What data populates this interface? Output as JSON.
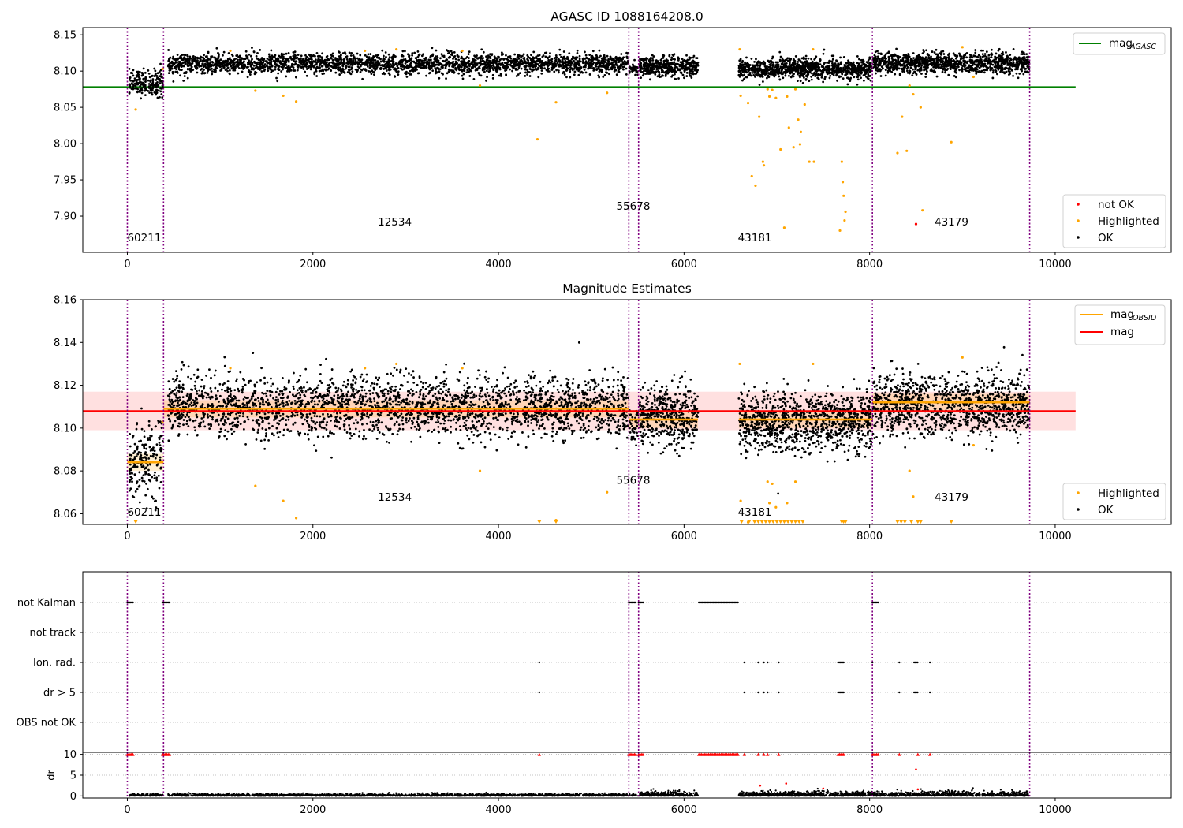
{
  "figure": {
    "title_top": "AGASC ID 1088164208.0",
    "title_mid": "Magnitude Estimates"
  },
  "colors": {
    "ok": "#000000",
    "highlighted": "#ffa500",
    "not_ok": "#ff0000",
    "mag_agasc": "#008000",
    "mag_obsid": "#ffa500",
    "mag": "#ff0000",
    "vline": "#800080",
    "grid": "#b0b0b0"
  },
  "chart_data": [
    {
      "type": "scatter",
      "title": "AGASC ID 1088164208.0",
      "xlim": [
        -480,
        11250
      ],
      "ylim": [
        7.85,
        8.16
      ],
      "xticks": [
        0,
        2000,
        4000,
        6000,
        8000,
        10000
      ],
      "yticks": [
        7.9,
        7.95,
        8.0,
        8.05,
        8.1,
        8.15
      ],
      "ytick_labels": [
        "7.90",
        "7.95",
        "8.00",
        "8.05",
        "8.10",
        "8.15"
      ],
      "hlines": [
        {
          "name": "mag_AGASC",
          "y": 8.078,
          "x": [
            -480,
            10220
          ]
        }
      ],
      "obsid_boundaries": [
        0,
        390,
        5405,
        5510,
        8030,
        9725
      ],
      "obsid_labels": [
        {
          "text": "60211",
          "x": 0,
          "y": 7.865
        },
        {
          "text": "12534",
          "x": 2700,
          "y": 7.887
        },
        {
          "text": "55678",
          "x": 5270,
          "y": 7.909
        },
        {
          "text": "43181",
          "x": 6580,
          "y": 7.865
        },
        {
          "text": "43179",
          "x": 8700,
          "y": 7.887
        }
      ],
      "series": [
        {
          "name": "not OK",
          "points": [
            [
              8500,
              7.889
            ]
          ]
        },
        {
          "name": "Highlighted",
          "points": [
            [
              90,
              8.047
            ],
            [
              380,
              8.103
            ],
            [
              1380,
              8.073
            ],
            [
              1680,
              8.066
            ],
            [
              1820,
              8.058
            ],
            [
              4420,
              8.006
            ],
            [
              4620,
              8.057
            ],
            [
              5170,
              8.07
            ],
            [
              6610,
              8.066
            ],
            [
              6690,
              8.056
            ],
            [
              6730,
              7.955
            ],
            [
              6770,
              7.942
            ],
            [
              6810,
              8.037
            ],
            [
              6850,
              7.975
            ],
            [
              6860,
              7.97
            ],
            [
              6900,
              8.075
            ],
            [
              6920,
              8.065
            ],
            [
              6950,
              8.074
            ],
            [
              6990,
              8.063
            ],
            [
              7040,
              7.992
            ],
            [
              7080,
              7.884
            ],
            [
              7110,
              8.065
            ],
            [
              7130,
              8.022
            ],
            [
              7180,
              7.995
            ],
            [
              7200,
              8.075
            ],
            [
              7230,
              8.033
            ],
            [
              7250,
              7.999
            ],
            [
              7260,
              8.016
            ],
            [
              7300,
              8.054
            ],
            [
              7350,
              7.975
            ],
            [
              7400,
              7.975
            ],
            [
              7680,
              7.88
            ],
            [
              7700,
              7.975
            ],
            [
              7710,
              7.947
            ],
            [
              7720,
              7.928
            ],
            [
              7730,
              7.894
            ],
            [
              7740,
              7.906
            ],
            [
              8300,
              7.987
            ],
            [
              8350,
              8.037
            ],
            [
              8400,
              7.99
            ],
            [
              8430,
              8.08
            ],
            [
              8470,
              8.068
            ],
            [
              8550,
              8.05
            ],
            [
              8570,
              7.908
            ],
            [
              8880,
              8.002
            ],
            [
              9000,
              8.133
            ],
            [
              9120,
              8.092
            ],
            [
              1110,
              8.128
            ],
            [
              2560,
              8.128
            ],
            [
              2900,
              8.13
            ],
            [
              3610,
              8.128
            ],
            [
              3800,
              8.08
            ],
            [
              6600,
              8.13
            ],
            [
              7390,
              8.13
            ]
          ]
        },
        {
          "name": "OK",
          "segments": [
            {
              "x": [
                20,
                385
              ],
              "center": 8.084,
              "spread": 0.009,
              "n": 200
            },
            {
              "x": [
                440,
                5400
              ],
              "center": 8.11,
              "spread": 0.007,
              "n": 2600
            },
            {
              "x": [
                5410,
                5505
              ],
              "center": 8.101,
              "spread": 0.004,
              "n": 40
            },
            {
              "x": [
                5520,
                6150
              ],
              "center": 8.106,
              "spread": 0.007,
              "n": 450
            },
            {
              "x": [
                6590,
                8025
              ],
              "center": 8.103,
              "spread": 0.007,
              "n": 1000
            },
            {
              "x": [
                8035,
                9720
              ],
              "center": 8.111,
              "spread": 0.007,
              "n": 1100
            }
          ]
        }
      ],
      "legend_lines": [
        {
          "label": "mag",
          "sub": "AGASC"
        }
      ],
      "legend_points": [
        "not OK",
        "Highlighted",
        "OK"
      ],
      "grid": false
    },
    {
      "type": "scatter",
      "title": "Magnitude Estimates",
      "xlim": [
        -480,
        11250
      ],
      "ylim": [
        8.055,
        8.16
      ],
      "xticks": [
        0,
        2000,
        4000,
        6000,
        8000,
        10000
      ],
      "yticks": [
        8.06,
        8.08,
        8.1,
        8.12,
        8.14,
        8.16
      ],
      "ytick_labels": [
        "8.06",
        "8.08",
        "8.10",
        "8.12",
        "8.14",
        "8.16"
      ],
      "mag": {
        "y": 8.108,
        "band": [
          8.099,
          8.117
        ],
        "x": [
          -480,
          10220
        ]
      },
      "mag_obsid_steps": [
        {
          "x": [
            0,
            390
          ],
          "y": 8.084
        },
        {
          "x": [
            390,
            5405
          ],
          "y": 8.109
        },
        {
          "x": [
            5405,
            6150
          ],
          "y": 8.104
        },
        {
          "x": [
            6590,
            8030
          ],
          "y": 8.104
        },
        {
          "x": [
            8030,
            9725
          ],
          "y": 8.112
        }
      ],
      "highlighted_markers_at_bottom": [
        90,
        4440,
        4620,
        6620,
        6700,
        6760,
        6800,
        6840,
        6880,
        6920,
        6960,
        7000,
        7040,
        7080,
        7120,
        7160,
        7200,
        7240,
        7280,
        7700,
        7720,
        7740,
        8300,
        8340,
        8380,
        8450,
        8520,
        8550,
        8880
      ],
      "obsid_labels": [
        {
          "text": "60211",
          "x": 0,
          "y": 8.059
        },
        {
          "text": "12534",
          "x": 2700,
          "y": 8.066
        },
        {
          "text": "55678",
          "x": 5270,
          "y": 8.074
        },
        {
          "text": "43181",
          "x": 6580,
          "y": 8.059
        },
        {
          "text": "43179",
          "x": 8700,
          "y": 8.066
        }
      ],
      "legend_lines": [
        {
          "label": "mag",
          "sub": "OBSID"
        },
        {
          "label": "mag",
          "sub": ""
        }
      ],
      "legend_points": [
        "Highlighted",
        "OK"
      ],
      "grid": false
    },
    {
      "type": "scatter",
      "title": "",
      "xlim": [
        -480,
        11250
      ],
      "flag_rows": [
        "not Kalman",
        "not track",
        "Ion. rad.",
        "dr > 5",
        "OBS not OK"
      ],
      "flag_events": {
        "not Kalman": [
          [
            0,
            60
          ],
          [
            380,
            460
          ],
          [
            5405,
            5480
          ],
          [
            5510,
            5560
          ],
          [
            6160,
            6580
          ],
          [
            8030,
            8090
          ]
        ],
        "Ion. rad.": [
          [
            4440,
            4440
          ],
          [
            6650,
            6650
          ],
          [
            6800,
            6800
          ],
          [
            6860,
            6860
          ],
          [
            6900,
            6900
          ],
          [
            7020,
            7020
          ],
          [
            7660,
            7720
          ],
          [
            8030,
            8030
          ],
          [
            8320,
            8320
          ],
          [
            8480,
            8520
          ],
          [
            8650,
            8650
          ]
        ],
        "dr > 5": [
          [
            4440,
            4440
          ],
          [
            6650,
            6650
          ],
          [
            6800,
            6800
          ],
          [
            6860,
            6860
          ],
          [
            6900,
            6900
          ],
          [
            7020,
            7020
          ],
          [
            7660,
            7720
          ],
          [
            8030,
            8030
          ],
          [
            8320,
            8320
          ],
          [
            8480,
            8520
          ],
          [
            8650,
            8650
          ]
        ]
      },
      "dr": {
        "ylabel": "dr",
        "yticks": [
          0,
          5,
          10
        ],
        "ylim": [
          -0.5,
          10.5
        ],
        "clipped_at_10": [
          [
            0,
            60
          ],
          [
            380,
            460
          ],
          [
            4440,
            4440
          ],
          [
            5405,
            5480
          ],
          [
            5510,
            5560
          ],
          [
            6160,
            6580
          ],
          [
            6650,
            6650
          ],
          [
            6800,
            6800
          ],
          [
            6860,
            6860
          ],
          [
            6900,
            6900
          ],
          [
            7020,
            7020
          ],
          [
            7660,
            7720
          ],
          [
            8030,
            8090
          ],
          [
            8320,
            8320
          ],
          [
            8520,
            8520
          ],
          [
            8650,
            8650
          ]
        ],
        "outliers": [
          [
            8500,
            6.4
          ],
          [
            7100,
            3.0
          ],
          [
            6820,
            2.5
          ],
          [
            7500,
            1.8
          ],
          [
            8520,
            1.6
          ]
        ]
      },
      "grid": true
    }
  ]
}
